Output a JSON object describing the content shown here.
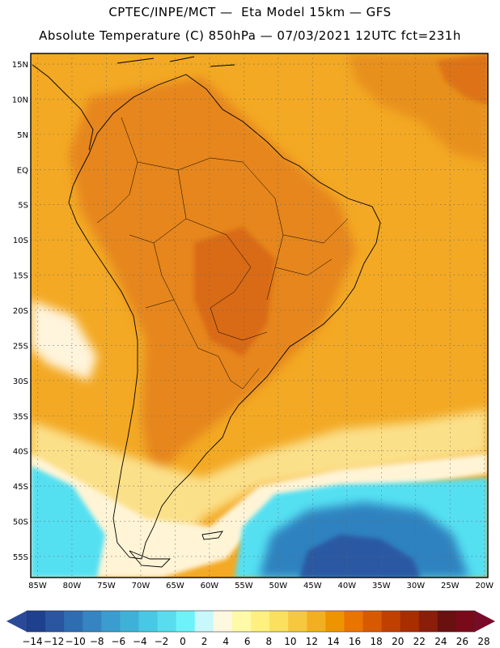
{
  "header": {
    "title_line1": "CPTEC/INPE/MCT —  Eta Model 15km — GFS",
    "title_line2": "Absolute Temperature (C) 850hPa — 07/03/2021 12UTC fct=231h"
  },
  "map": {
    "lat_labels": [
      "15N",
      "10N",
      "5N",
      "EQ",
      "5S",
      "10S",
      "15S",
      "20S",
      "25S",
      "30S",
      "35S",
      "40S",
      "45S",
      "50S",
      "55S"
    ],
    "lon_labels": [
      "85W",
      "80W",
      "75W",
      "70W",
      "65W",
      "60W",
      "55W",
      "50W",
      "45W",
      "40W",
      "35W",
      "30W",
      "25W",
      "20W"
    ],
    "lat_values": [
      15,
      10,
      5,
      0,
      -5,
      -10,
      -15,
      -20,
      -25,
      -30,
      -35,
      -40,
      -45,
      -50,
      -55
    ],
    "lon_values": [
      -85,
      -80,
      -75,
      -70,
      -65,
      -60,
      -55,
      -50,
      -45,
      -40,
      -35,
      -30,
      -25,
      -20
    ],
    "lat_range": [
      -58,
      16.5
    ],
    "lon_range": [
      -86,
      -19.5
    ]
  },
  "colorbar": {
    "tick_labels": [
      "-14",
      "-12",
      "-10",
      "-8",
      "-6",
      "-4",
      "-2",
      "0",
      "2",
      "4",
      "6",
      "8",
      "10",
      "12",
      "14",
      "16",
      "18",
      "20",
      "22",
      "24",
      "26",
      "28"
    ],
    "tick_values": [
      -14,
      -12,
      -10,
      -8,
      -6,
      -4,
      -2,
      0,
      2,
      4,
      6,
      8,
      10,
      12,
      14,
      16,
      18,
      20,
      22,
      24,
      26,
      28
    ],
    "colors": [
      "#1f3f8f",
      "#2a55a0",
      "#2f6db3",
      "#3485c2",
      "#3a9ccf",
      "#3fb1d8",
      "#48c8e4",
      "#58dcee",
      "#6ef2fa",
      "#c8f8fc",
      "#fff8e0",
      "#fffaa8",
      "#fff080",
      "#fbe060",
      "#f6c840",
      "#f2b020",
      "#ee9400",
      "#e97400",
      "#d85a00",
      "#c04000",
      "#a82e00",
      "#8a1e0a",
      "#6a1010",
      "#7a0a1a"
    ],
    "under_color": "#2a4a98",
    "over_color": "#7a0a2a"
  },
  "colors": {
    "ocean_base": "#f3a924",
    "land_base": "#eea020",
    "land_hot": "#e0801c",
    "cool_band": "#fde7a6",
    "cold_sea": "#56e4f5",
    "very_cold": "#2f82c0"
  }
}
